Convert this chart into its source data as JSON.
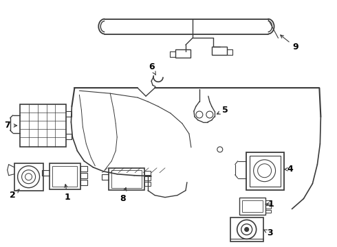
{
  "background_color": "#ffffff",
  "line_color": "#3a3a3a",
  "label_color": "#000000",
  "fig_width": 4.9,
  "fig_height": 3.6,
  "dpi": 100
}
